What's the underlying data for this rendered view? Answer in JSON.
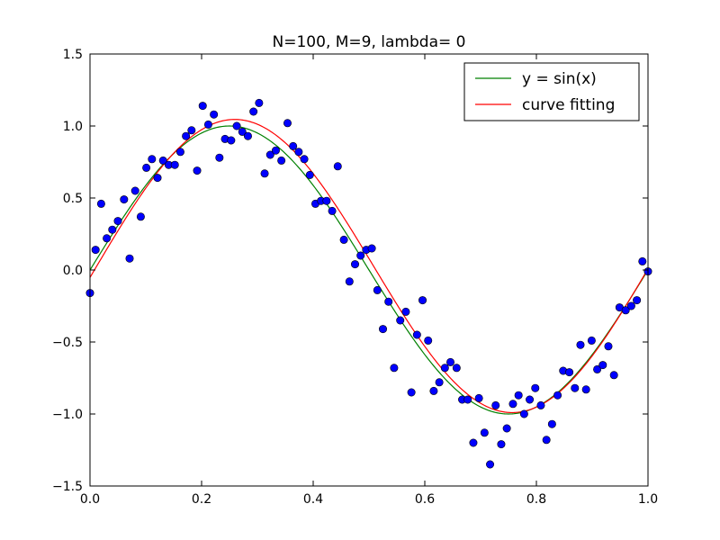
{
  "chart_data": {
    "type": "scatter",
    "title": "N=100, M=9, lambda= 0",
    "xlabel": "",
    "ylabel": "",
    "xlim": [
      0.0,
      1.0
    ],
    "ylim": [
      -1.5,
      1.5
    ],
    "xticks": [
      "0.0",
      "0.2",
      "0.4",
      "0.6",
      "0.8",
      "1.0"
    ],
    "yticks": [
      "1.5",
      "1.0",
      "0.5",
      "0.0",
      "−0.5",
      "−1.0",
      "−1.5"
    ],
    "grid": false,
    "legend_position": "top-right",
    "legend": [
      {
        "label": "y = sin(x)",
        "color": "#008000"
      },
      {
        "label": "curve fitting",
        "color": "#ff0000"
      }
    ],
    "points_color": "#0000ff",
    "points": {
      "x": [
        0.0,
        0.01,
        0.02,
        0.03,
        0.04,
        0.05,
        0.061,
        0.071,
        0.081,
        0.091,
        0.101,
        0.111,
        0.121,
        0.131,
        0.141,
        0.152,
        0.162,
        0.172,
        0.182,
        0.192,
        0.202,
        0.212,
        0.222,
        0.232,
        0.242,
        0.253,
        0.263,
        0.273,
        0.283,
        0.293,
        0.303,
        0.313,
        0.323,
        0.333,
        0.343,
        0.354,
        0.364,
        0.374,
        0.384,
        0.394,
        0.404,
        0.414,
        0.424,
        0.434,
        0.444,
        0.455,
        0.465,
        0.475,
        0.485,
        0.495,
        0.505,
        0.515,
        0.525,
        0.535,
        0.545,
        0.556,
        0.566,
        0.576,
        0.586,
        0.596,
        0.606,
        0.616,
        0.626,
        0.636,
        0.646,
        0.657,
        0.667,
        0.677,
        0.687,
        0.697,
        0.707,
        0.717,
        0.727,
        0.737,
        0.747,
        0.758,
        0.768,
        0.778,
        0.788,
        0.798,
        0.808,
        0.818,
        0.828,
        0.838,
        0.848,
        0.859,
        0.869,
        0.879,
        0.889,
        0.899,
        0.909,
        0.919,
        0.929,
        0.939,
        0.949,
        0.96,
        0.97,
        0.98,
        0.99,
        1.0
      ],
      "y": [
        -0.16,
        0.14,
        0.46,
        0.22,
        0.28,
        0.34,
        0.49,
        0.08,
        0.55,
        0.37,
        0.71,
        0.77,
        0.64,
        0.76,
        0.73,
        0.73,
        0.82,
        0.93,
        0.97,
        0.69,
        1.14,
        1.01,
        1.08,
        0.78,
        0.91,
        0.9,
        1.0,
        0.96,
        0.93,
        1.1,
        1.16,
        0.67,
        0.8,
        0.83,
        0.76,
        1.02,
        0.86,
        0.82,
        0.77,
        0.66,
        0.46,
        0.48,
        0.48,
        0.41,
        0.72,
        0.21,
        -0.08,
        0.04,
        0.1,
        0.14,
        0.15,
        -0.14,
        -0.41,
        -0.22,
        -0.68,
        -0.35,
        -0.29,
        -0.85,
        -0.45,
        -0.21,
        -0.49,
        -0.84,
        -0.78,
        -0.68,
        -0.64,
        -0.68,
        -0.9,
        -0.9,
        -1.2,
        -0.89,
        -1.13,
        -1.35,
        -0.94,
        -1.21,
        -1.1,
        -0.93,
        -0.87,
        -1.0,
        -0.9,
        -0.82,
        -0.94,
        -1.18,
        -1.07,
        -0.87,
        -0.7,
        -0.71,
        -0.82,
        -0.52,
        -0.83,
        -0.49,
        -0.69,
        -0.66,
        -0.53,
        -0.73,
        -0.26,
        -0.28,
        -0.25,
        -0.21,
        0.06,
        -0.01
      ]
    },
    "series": [
      {
        "name": "y = sin(x)",
        "color": "#008000",
        "function": "sin(2*pi*x)"
      },
      {
        "name": "curve fitting",
        "color": "#ff0000",
        "function": "polynomial fit M=9"
      }
    ]
  }
}
